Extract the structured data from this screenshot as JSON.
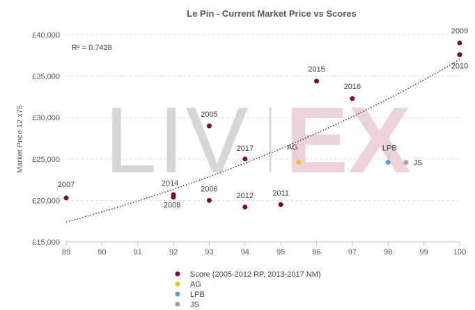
{
  "chart_data": {
    "type": "scatter",
    "title": "Le Pin - Current Market Price vs Scores",
    "xlabel": "",
    "ylabel": "Market Price 12 x75",
    "xlim": [
      89,
      100
    ],
    "ylim": [
      15000,
      40000
    ],
    "x_ticks": [
      89,
      90,
      91,
      92,
      93,
      94,
      95,
      96,
      97,
      98,
      99,
      100
    ],
    "y_ticks": [
      15000,
      20000,
      25000,
      30000,
      35000,
      40000
    ],
    "y_tick_labels": [
      "£15,000",
      "£20,000",
      "£25,000",
      "£30,000",
      "£35,000",
      "£40,000"
    ],
    "grid": "horizontal dashed",
    "watermark": "LIV|EX",
    "trendline": {
      "type": "exponential",
      "style": "dotted",
      "r2_label": "R² = 0.7428"
    },
    "series": [
      {
        "name": "Score (2005-2012 RP, 2013-2017 NM)",
        "color": "#7b0a2e",
        "points": [
          {
            "x": 89,
            "y": 20300,
            "label": "2007"
          },
          {
            "x": 92,
            "y": 20700,
            "label": "2014"
          },
          {
            "x": 92,
            "y": 20400,
            "label": "2008"
          },
          {
            "x": 93,
            "y": 29000,
            "label": "2005"
          },
          {
            "x": 93,
            "y": 20000,
            "label": "2006"
          },
          {
            "x": 94,
            "y": 25000,
            "label": "2017"
          },
          {
            "x": 94,
            "y": 19200,
            "label": "2012"
          },
          {
            "x": 95,
            "y": 19500,
            "label": "2011"
          },
          {
            "x": 96,
            "y": 34400,
            "label": "2015"
          },
          {
            "x": 97,
            "y": 32300,
            "label": "2016"
          },
          {
            "x": 100,
            "y": 39000,
            "label": "2009"
          },
          {
            "x": 100,
            "y": 37600,
            "label": "2010"
          }
        ]
      },
      {
        "name": "AG",
        "color": "#f5c200",
        "points": [
          {
            "x": 95.5,
            "y": 24600,
            "label": "AG"
          }
        ]
      },
      {
        "name": "LPB",
        "color": "#5b9bd5",
        "points": [
          {
            "x": 98,
            "y": 24600,
            "label": "LPB"
          }
        ]
      },
      {
        "name": "JS",
        "color": "#a5a5a5",
        "points": [
          {
            "x": 98.5,
            "y": 24600,
            "label": "JS"
          }
        ]
      }
    ]
  }
}
